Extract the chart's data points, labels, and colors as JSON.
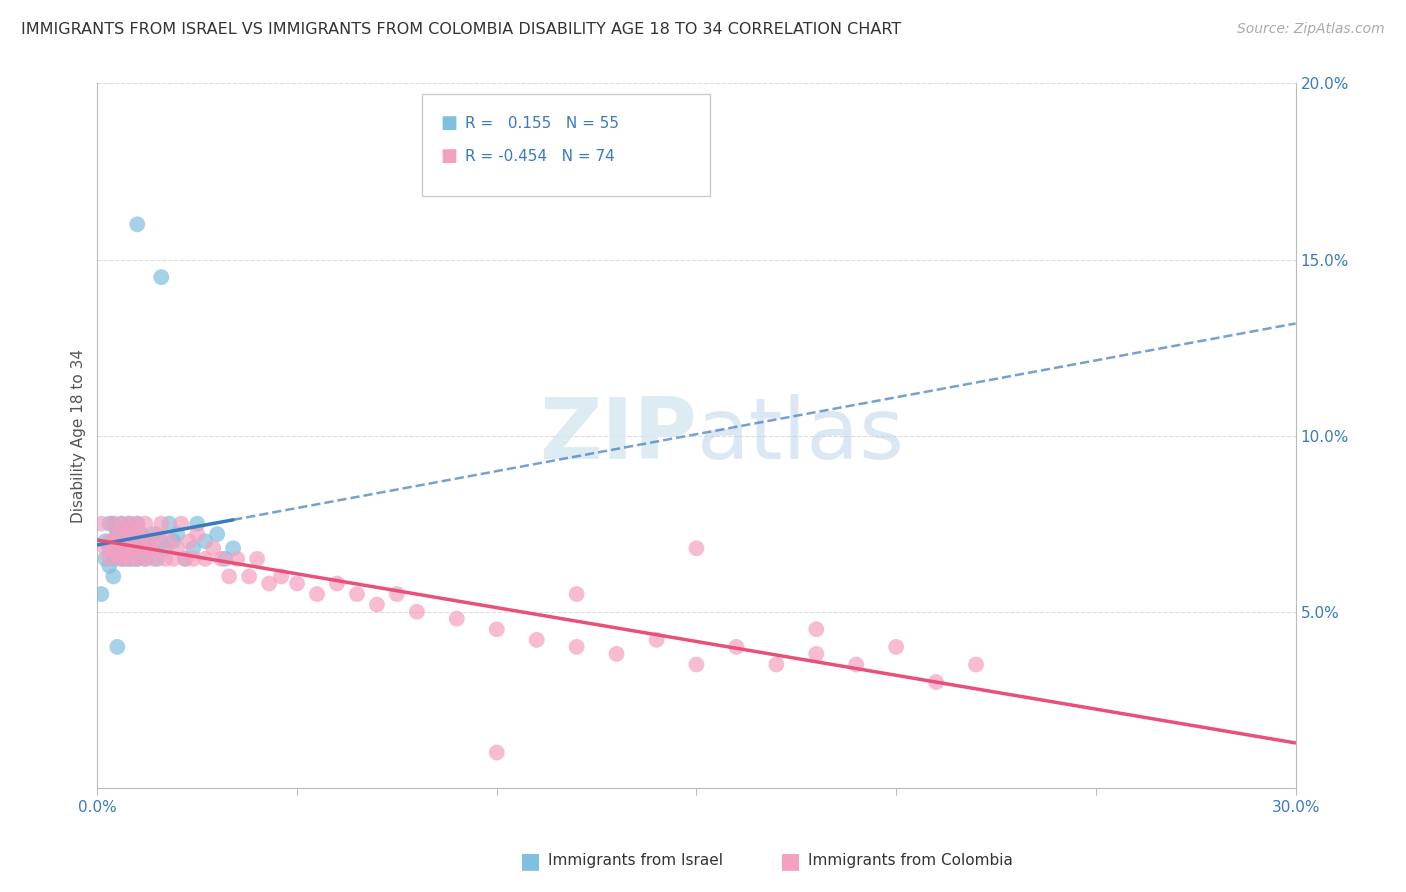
{
  "title": "IMMIGRANTS FROM ISRAEL VS IMMIGRANTS FROM COLOMBIA DISABILITY AGE 18 TO 34 CORRELATION CHART",
  "source": "Source: ZipAtlas.com",
  "ylabel": "Disability Age 18 to 34",
  "x_min": 0.0,
  "x_max": 0.3,
  "y_min": 0.0,
  "y_max": 0.2,
  "legend_r1": "0.155",
  "legend_n1": "55",
  "legend_r2": "-0.454",
  "legend_n2": "74",
  "color_israel": "#7fbfdf",
  "color_colombia": "#f4a0c0",
  "color_title": "#333333",
  "color_source": "#aaaaaa",
  "color_axis": "#bbbbbb",
  "color_grid": "#dddddd",
  "israel_line_color": "#3a7abf",
  "colombia_line_color": "#e8507a",
  "israel_x": [
    0.001,
    0.002,
    0.002,
    0.003,
    0.003,
    0.003,
    0.004,
    0.004,
    0.004,
    0.004,
    0.005,
    0.005,
    0.005,
    0.005,
    0.006,
    0.006,
    0.006,
    0.006,
    0.007,
    0.007,
    0.007,
    0.007,
    0.008,
    0.008,
    0.008,
    0.008,
    0.009,
    0.009,
    0.009,
    0.01,
    0.01,
    0.01,
    0.011,
    0.011,
    0.012,
    0.012,
    0.013,
    0.014,
    0.015,
    0.016,
    0.017,
    0.018,
    0.019,
    0.02,
    0.022,
    0.024,
    0.025,
    0.027,
    0.03,
    0.032,
    0.034,
    0.016,
    0.01,
    0.008,
    0.005
  ],
  "israel_y": [
    0.055,
    0.07,
    0.065,
    0.075,
    0.068,
    0.063,
    0.07,
    0.065,
    0.075,
    0.06,
    0.068,
    0.073,
    0.066,
    0.072,
    0.07,
    0.065,
    0.075,
    0.068,
    0.072,
    0.066,
    0.07,
    0.065,
    0.075,
    0.068,
    0.073,
    0.066,
    0.072,
    0.065,
    0.07,
    0.075,
    0.068,
    0.065,
    0.072,
    0.066,
    0.07,
    0.065,
    0.068,
    0.072,
    0.065,
    0.07,
    0.068,
    0.075,
    0.07,
    0.072,
    0.065,
    0.068,
    0.075,
    0.07,
    0.072,
    0.065,
    0.068,
    0.145,
    0.16,
    0.065,
    0.04
  ],
  "colombia_x": [
    0.001,
    0.002,
    0.003,
    0.003,
    0.004,
    0.004,
    0.005,
    0.005,
    0.005,
    0.006,
    0.006,
    0.007,
    0.007,
    0.007,
    0.008,
    0.008,
    0.008,
    0.009,
    0.009,
    0.01,
    0.01,
    0.011,
    0.011,
    0.012,
    0.012,
    0.013,
    0.013,
    0.014,
    0.015,
    0.015,
    0.016,
    0.017,
    0.018,
    0.019,
    0.02,
    0.021,
    0.022,
    0.023,
    0.024,
    0.025,
    0.027,
    0.029,
    0.031,
    0.033,
    0.035,
    0.038,
    0.04,
    0.043,
    0.046,
    0.05,
    0.055,
    0.06,
    0.065,
    0.07,
    0.075,
    0.08,
    0.09,
    0.1,
    0.11,
    0.12,
    0.13,
    0.14,
    0.15,
    0.16,
    0.17,
    0.18,
    0.19,
    0.2,
    0.21,
    0.22,
    0.1,
    0.12,
    0.15,
    0.18
  ],
  "colombia_y": [
    0.075,
    0.068,
    0.07,
    0.065,
    0.075,
    0.068,
    0.072,
    0.066,
    0.07,
    0.075,
    0.065,
    0.072,
    0.068,
    0.066,
    0.075,
    0.065,
    0.07,
    0.072,
    0.068,
    0.075,
    0.065,
    0.072,
    0.068,
    0.075,
    0.065,
    0.07,
    0.068,
    0.065,
    0.072,
    0.068,
    0.075,
    0.065,
    0.07,
    0.065,
    0.068,
    0.075,
    0.065,
    0.07,
    0.065,
    0.072,
    0.065,
    0.068,
    0.065,
    0.06,
    0.065,
    0.06,
    0.065,
    0.058,
    0.06,
    0.058,
    0.055,
    0.058,
    0.055,
    0.052,
    0.055,
    0.05,
    0.048,
    0.045,
    0.042,
    0.04,
    0.038,
    0.042,
    0.035,
    0.04,
    0.035,
    0.038,
    0.035,
    0.04,
    0.03,
    0.035,
    0.01,
    0.055,
    0.068,
    0.045
  ]
}
